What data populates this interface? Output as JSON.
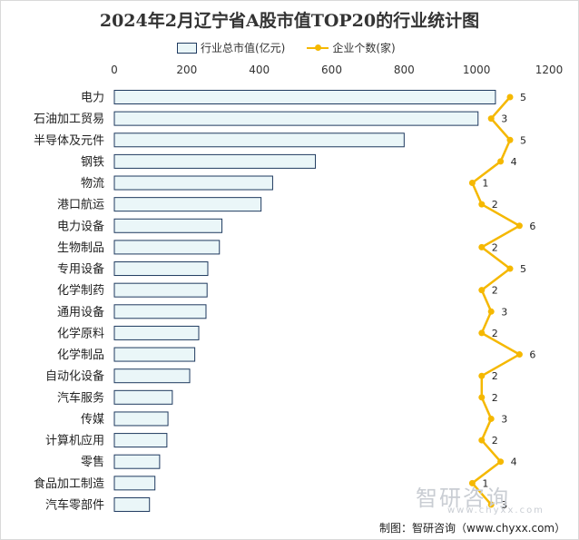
{
  "chart_data": {
    "type": "bar",
    "title": "2024年2月辽宁省A股市值TOP20的行业统计图",
    "categories": [
      "电力",
      "石油加工贸易",
      "半导体及元件",
      "钢铁",
      "物流",
      "港口航运",
      "电力设备",
      "生物制品",
      "专用设备",
      "化学制药",
      "通用设备",
      "化学原料",
      "化学制品",
      "自动化设备",
      "汽车服务",
      "传媒",
      "计算机应用",
      "零售",
      "食品加工制造",
      "汽车零部件"
    ],
    "series": [
      {
        "name": "行业总市值(亿元)",
        "type": "bar",
        "values": [
          1052,
          1004,
          800,
          555,
          437,
          405,
          297,
          290,
          258,
          256,
          253,
          233,
          222,
          208,
          160,
          148,
          145,
          125,
          112,
          97
        ]
      },
      {
        "name": "企业个数(家)",
        "type": "line",
        "values": [
          5,
          3,
          5,
          4,
          1,
          2,
          6,
          2,
          5,
          2,
          3,
          2,
          6,
          2,
          2,
          3,
          2,
          4,
          1,
          3
        ]
      }
    ],
    "xlim": [
      0,
      1200
    ],
    "x_ticks": [
      "0",
      "200",
      "400",
      "600",
      "800",
      "1000",
      "1200"
    ],
    "bar_color": "#eaf6f8",
    "bar_border": "#1f3a5f",
    "line_color": "#f5b800",
    "legend_position": "top"
  },
  "watermark": "智研咨询",
  "watermark_url": "www.chyxx.com",
  "source": "制图：智研咨询（www.chyxx.com）"
}
